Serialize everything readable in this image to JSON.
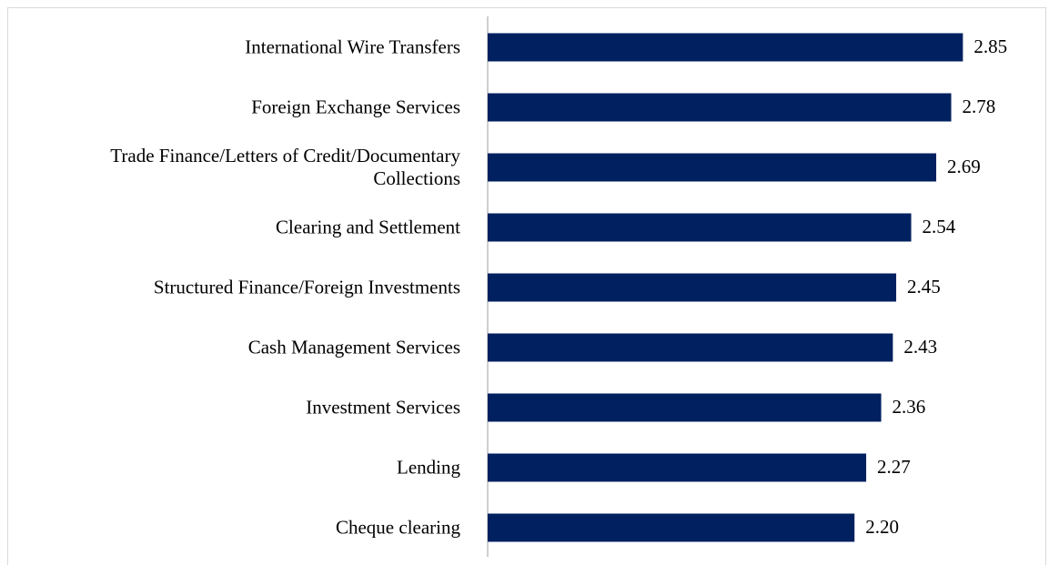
{
  "chart_data": {
    "type": "barh",
    "categories": [
      "International Wire Transfers",
      "Foreign Exchange Services",
      "Trade Finance/Letters of Credit/Documentary Collections",
      "Clearing and Settlement",
      "Structured Finance/Foreign Investments",
      "Cash Management Services",
      "Investment Services",
      "Lending",
      "Cheque clearing"
    ],
    "values": [
      2.85,
      2.78,
      2.69,
      2.54,
      2.45,
      2.43,
      2.36,
      2.27,
      2.2
    ],
    "value_labels": [
      "2.85",
      "2.78",
      "2.69",
      "2.54",
      "2.45",
      "2.43",
      "2.36",
      "2.27",
      "2.20"
    ],
    "color": "#002060",
    "xlim": [
      0,
      3.35
    ]
  }
}
